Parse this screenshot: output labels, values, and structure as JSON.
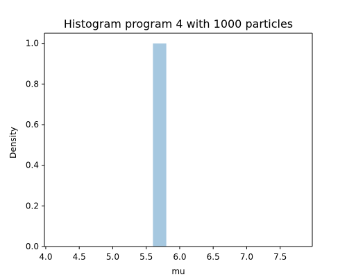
{
  "chart_data": {
    "type": "bar",
    "title": "Histogram program 4 with 1000 particles",
    "xlabel": "mu",
    "ylabel": "Density",
    "xlim": [
      3.98,
      7.98
    ],
    "ylim": [
      0,
      1.05
    ],
    "x_ticks": [
      4.0,
      4.5,
      5.0,
      5.5,
      6.0,
      6.5,
      7.0,
      7.5
    ],
    "x_tick_labels": [
      "4.0",
      "4.5",
      "5.0",
      "5.5",
      "6.0",
      "6.5",
      "7.0",
      "7.5"
    ],
    "y_ticks": [
      0.0,
      0.2,
      0.4,
      0.6,
      0.8,
      1.0
    ],
    "y_tick_labels": [
      "0.0",
      "0.2",
      "0.4",
      "0.6",
      "0.8",
      "1.0"
    ],
    "bins": [
      {
        "x_start": 5.6,
        "x_end": 5.8,
        "density": 1.0
      }
    ],
    "bar_color": "#a6c8e0",
    "grid": false,
    "legend": "none"
  }
}
